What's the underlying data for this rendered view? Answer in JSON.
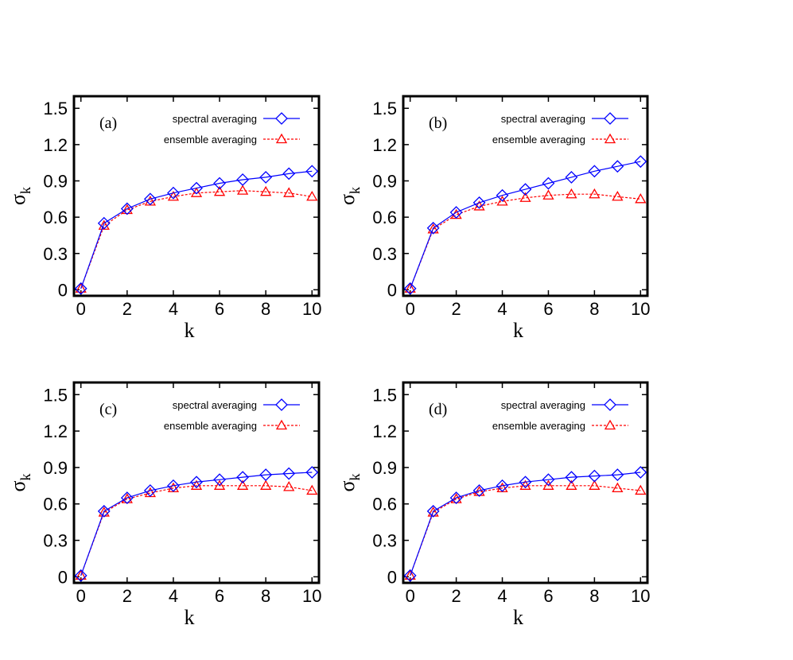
{
  "chart_data": [
    {
      "type": "line",
      "panel_label": "(a)",
      "xlabel": "k",
      "ylabel_main": "σ",
      "ylabel_sub": "k",
      "xlim": [
        -0.3,
        10.3
      ],
      "ylim": [
        -0.05,
        1.6
      ],
      "xticks": [
        0,
        2,
        4,
        6,
        8,
        10
      ],
      "yticks": [
        0,
        0.3,
        0.6,
        0.9,
        1.2,
        1.5
      ],
      "x": [
        0,
        1,
        2,
        3,
        4,
        5,
        6,
        7,
        8,
        9,
        10
      ],
      "series": [
        {
          "name": "spectral averaging",
          "color": "#0000ff",
          "marker": "diamond",
          "line": "solid",
          "values": [
            0.01,
            0.55,
            0.67,
            0.75,
            0.8,
            0.84,
            0.88,
            0.91,
            0.93,
            0.96,
            0.98
          ]
        },
        {
          "name": "ensemble averaging",
          "color": "#ff0000",
          "marker": "triangle",
          "line": "dashed",
          "values": [
            0.01,
            0.53,
            0.66,
            0.73,
            0.77,
            0.8,
            0.81,
            0.82,
            0.81,
            0.8,
            0.77
          ]
        }
      ]
    },
    {
      "type": "line",
      "panel_label": "(b)",
      "xlabel": "k",
      "ylabel_main": "σ",
      "ylabel_sub": "k",
      "xlim": [
        -0.3,
        10.3
      ],
      "ylim": [
        -0.05,
        1.6
      ],
      "xticks": [
        0,
        2,
        4,
        6,
        8,
        10
      ],
      "yticks": [
        0,
        0.3,
        0.6,
        0.9,
        1.2,
        1.5
      ],
      "x": [
        0,
        1,
        2,
        3,
        4,
        5,
        6,
        7,
        8,
        9,
        10
      ],
      "series": [
        {
          "name": "spectral averaging",
          "color": "#0000ff",
          "marker": "diamond",
          "line": "solid",
          "values": [
            0.01,
            0.51,
            0.64,
            0.72,
            0.78,
            0.83,
            0.88,
            0.93,
            0.98,
            1.02,
            1.06
          ]
        },
        {
          "name": "ensemble averaging",
          "color": "#ff0000",
          "marker": "triangle",
          "line": "dashed",
          "values": [
            0.01,
            0.5,
            0.62,
            0.69,
            0.73,
            0.76,
            0.78,
            0.79,
            0.79,
            0.77,
            0.75
          ]
        }
      ]
    },
    {
      "type": "line",
      "panel_label": "(c)",
      "xlabel": "k",
      "ylabel_main": "σ",
      "ylabel_sub": "k",
      "xlim": [
        -0.3,
        10.3
      ],
      "ylim": [
        -0.05,
        1.6
      ],
      "xticks": [
        0,
        2,
        4,
        6,
        8,
        10
      ],
      "yticks": [
        0,
        0.3,
        0.6,
        0.9,
        1.2,
        1.5
      ],
      "x": [
        0,
        1,
        2,
        3,
        4,
        5,
        6,
        7,
        8,
        9,
        10
      ],
      "series": [
        {
          "name": "spectral averaging",
          "color": "#0000ff",
          "marker": "diamond",
          "line": "solid",
          "values": [
            0.01,
            0.54,
            0.65,
            0.71,
            0.75,
            0.78,
            0.8,
            0.82,
            0.84,
            0.85,
            0.86
          ]
        },
        {
          "name": "ensemble averaging",
          "color": "#ff0000",
          "marker": "triangle",
          "line": "dashed",
          "values": [
            0.01,
            0.53,
            0.64,
            0.69,
            0.73,
            0.75,
            0.75,
            0.75,
            0.75,
            0.74,
            0.71
          ]
        }
      ]
    },
    {
      "type": "line",
      "panel_label": "(d)",
      "xlabel": "k",
      "ylabel_main": "σ",
      "ylabel_sub": "k",
      "xlim": [
        -0.3,
        10.3
      ],
      "ylim": [
        -0.05,
        1.6
      ],
      "xticks": [
        0,
        2,
        4,
        6,
        8,
        10
      ],
      "yticks": [
        0,
        0.3,
        0.6,
        0.9,
        1.2,
        1.5
      ],
      "x": [
        0,
        1,
        2,
        3,
        4,
        5,
        6,
        7,
        8,
        9,
        10
      ],
      "series": [
        {
          "name": "spectral averaging",
          "color": "#0000ff",
          "marker": "diamond",
          "line": "solid",
          "values": [
            0.01,
            0.54,
            0.65,
            0.71,
            0.75,
            0.78,
            0.8,
            0.82,
            0.83,
            0.84,
            0.86
          ]
        },
        {
          "name": "ensemble averaging",
          "color": "#ff0000",
          "marker": "triangle",
          "line": "dashed",
          "values": [
            0.01,
            0.53,
            0.64,
            0.7,
            0.73,
            0.75,
            0.75,
            0.75,
            0.75,
            0.73,
            0.71
          ]
        }
      ]
    }
  ]
}
